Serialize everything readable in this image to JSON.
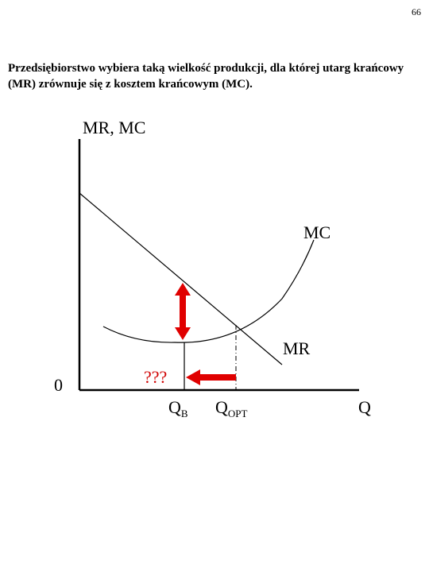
{
  "page_number": "66",
  "statement": "Przedsiębiorstwo wybiera taką wielkość produkcji, dla której utarg krańcowy (MR) zrównuje się z kosztem krańcowym (MC).",
  "diagram": {
    "y_axis_label": "MR, MC",
    "x_axis_label": "Q",
    "origin_label": "0",
    "mc_label": "MC",
    "mr_label": "MR",
    "qb_label_main": "Q",
    "qb_label_sub": "B",
    "qopt_label_main": "Q",
    "qopt_label_sub": "OPT",
    "question_marks": "???",
    "arrow_color": "#e00000"
  }
}
